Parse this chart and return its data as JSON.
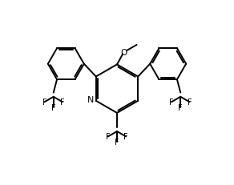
{
  "bg_color": "#ffffff",
  "line_color": "#000000",
  "lw": 1.4,
  "fs": 7.0,
  "fig_w": 2.92,
  "fig_h": 2.32,
  "dpi": 100,
  "xlim": [
    0,
    10
  ],
  "ylim": [
    0,
    8
  ]
}
